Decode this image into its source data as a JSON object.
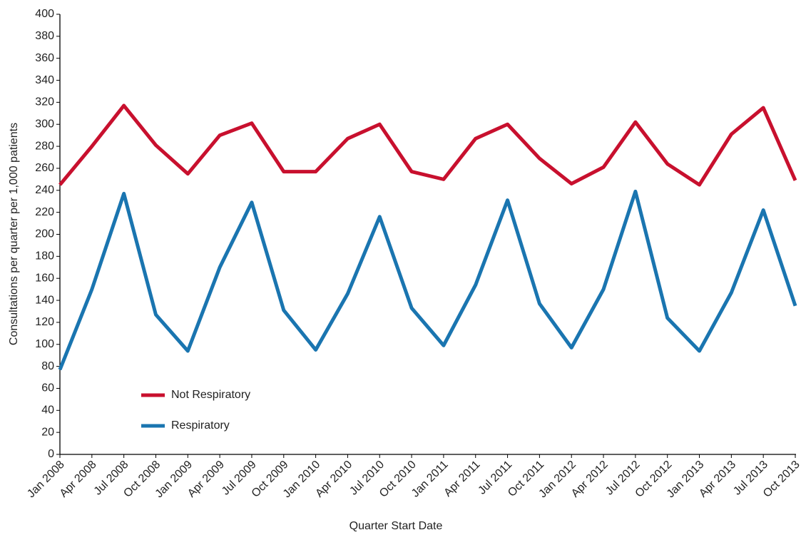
{
  "chart_data": {
    "type": "line",
    "x_label": "Quarter Start Date",
    "y_label": "Consultations per quarter per 1,000 patients",
    "categories": [
      "Jan 2008",
      "Apr 2008",
      "Jul 2008",
      "Oct 2008",
      "Jan 2009",
      "Apr 2009",
      "Jul 2009",
      "Oct 2009",
      "Jan 2010",
      "Apr 2010",
      "Jul 2010",
      "Oct 2010",
      "Jan 2011",
      "Apr 2011",
      "Jul 2011",
      "Oct 2011",
      "Jan 2012",
      "Apr 2012",
      "Jul 2012",
      "Oct 2012",
      "Jan 2013",
      "Apr 2013",
      "Jul 2013",
      "Oct 2013"
    ],
    "series": [
      {
        "name": "Not Respiratory",
        "color": "#c8102e",
        "values": [
          245,
          280,
          317,
          281,
          255,
          290,
          301,
          257,
          257,
          287,
          300,
          257,
          250,
          287,
          300,
          269,
          246,
          261,
          302,
          264,
          245,
          291,
          315,
          249
        ]
      },
      {
        "name": "Respiratory",
        "color": "#1a75b0",
        "values": [
          77,
          150,
          237,
          127,
          94,
          170,
          229,
          131,
          95,
          146,
          216,
          133,
          99,
          154,
          231,
          137,
          97,
          150,
          239,
          124,
          94,
          147,
          222,
          135
        ]
      }
    ],
    "ylim": [
      0,
      400
    ],
    "yticks": [
      0,
      20,
      40,
      60,
      80,
      100,
      120,
      140,
      160,
      180,
      200,
      220,
      240,
      260,
      280,
      300,
      320,
      340,
      360,
      380,
      400
    ],
    "grid": false,
    "legend": "lower left"
  }
}
